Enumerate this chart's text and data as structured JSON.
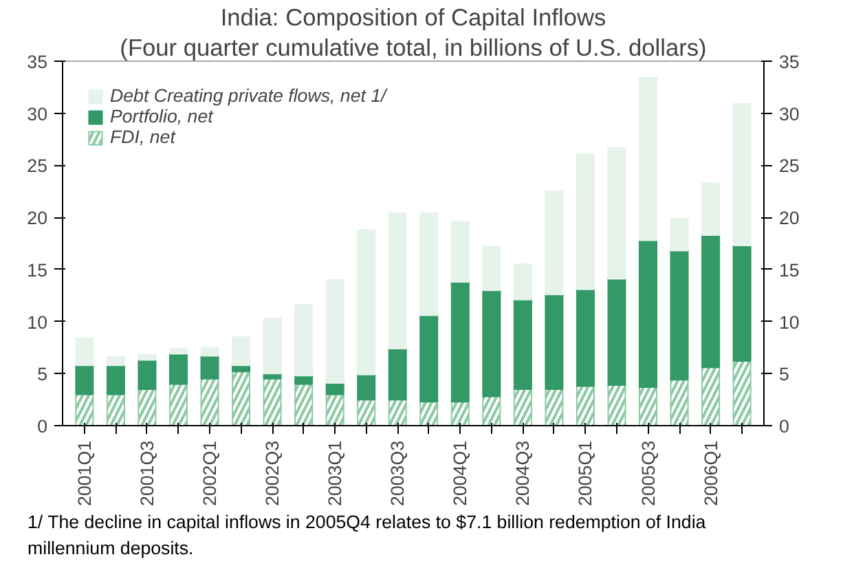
{
  "chart_data": {
    "type": "bar",
    "stacked": true,
    "title": "India: Composition of Capital Inflows",
    "subtitle": "(Four quarter cumulative total, in billions of U.S. dollars)",
    "categories": [
      "2001Q1",
      null,
      "2001Q3",
      null,
      "2002Q1",
      null,
      "2002Q3",
      null,
      "2003Q1",
      null,
      "2003Q3",
      null,
      "2004Q1",
      null,
      "2004Q3",
      null,
      "2005Q1",
      null,
      "2005Q3",
      null,
      "2006Q1",
      null
    ],
    "series": [
      {
        "name": "FDI, net",
        "color": "#8cc9a5",
        "values": [
          3.0,
          3.0,
          3.5,
          4.0,
          4.5,
          5.2,
          4.5,
          4.0,
          3.0,
          2.5,
          2.5,
          2.3,
          2.3,
          2.8,
          3.5,
          3.5,
          3.8,
          3.9,
          3.7,
          4.4,
          5.6,
          6.2
        ]
      },
      {
        "name": "Portfolio, net",
        "color": "#339966",
        "values": [
          2.8,
          2.8,
          2.8,
          2.9,
          2.2,
          0.6,
          0.5,
          0.8,
          1.1,
          2.4,
          4.9,
          8.3,
          11.5,
          10.2,
          8.6,
          9.1,
          9.3,
          10.2,
          14.1,
          12.4,
          12.7,
          11.1
        ]
      },
      {
        "name": "Debt Creating private flows, net 1/",
        "color": "#e6f3eb",
        "values": [
          2.6,
          0.8,
          0.5,
          0.5,
          0.8,
          2.7,
          5.3,
          6.8,
          9.9,
          13.9,
          13.0,
          9.8,
          5.8,
          4.2,
          3.4,
          9.9,
          13.0,
          12.6,
          15.6,
          3.1,
          5.0,
          13.6
        ]
      }
    ],
    "ylim": [
      0,
      35
    ],
    "yticks": [
      0,
      5,
      10,
      15,
      20,
      25,
      30,
      35
    ],
    "y2lim": [
      0,
      35
    ],
    "y2ticks": [
      0,
      5,
      10,
      15,
      20,
      25,
      30,
      35
    ],
    "grid": false,
    "legend": "top left",
    "annotations": [
      "1/ The decline in capital inflows in 2005Q4 relates to $7.1 billion redemption of India millennium deposits."
    ]
  }
}
